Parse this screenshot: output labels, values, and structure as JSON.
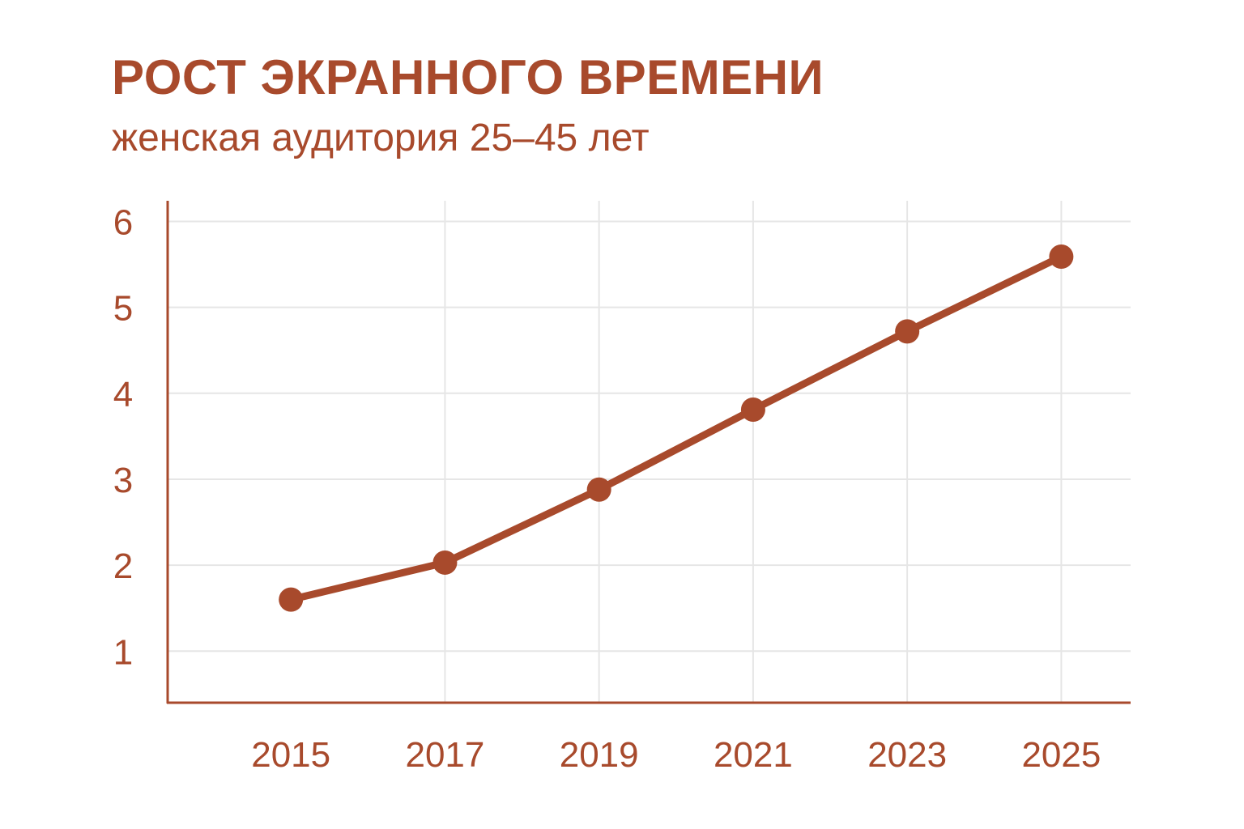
{
  "colors": {
    "accent": "#a84a2c",
    "grid": "#e6e6e6",
    "background": "#ffffff"
  },
  "chart_data": {
    "type": "line",
    "title": "РОСТ ЭКРАННОГО ВРЕМЕНИ",
    "subtitle": "женская аудитория 25–45 лет",
    "xlabel": "",
    "ylabel": "",
    "x": [
      2015,
      2017,
      2019,
      2021,
      2023,
      2025
    ],
    "x_tick_labels": [
      "2015",
      "2017",
      "2019",
      "2021",
      "2023",
      "2025"
    ],
    "y_ticks": [
      1,
      2,
      3,
      4,
      5,
      6
    ],
    "y_tick_labels": [
      "1",
      "2",
      "3",
      "4",
      "5",
      "6"
    ],
    "xlim": [
      2013.4,
      2025.9
    ],
    "ylim": [
      0.4,
      6.24
    ],
    "grid": true,
    "legend": "none",
    "series": [
      {
        "values": [
          1.6,
          2.03,
          2.88,
          3.81,
          4.72,
          5.59
        ]
      }
    ]
  }
}
